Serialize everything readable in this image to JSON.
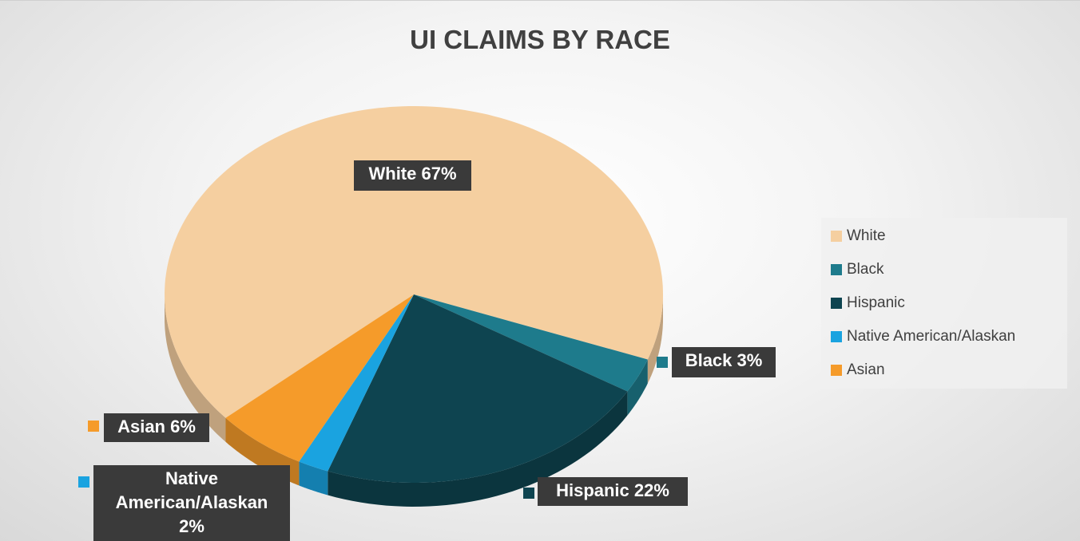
{
  "chart_data": {
    "type": "pie",
    "title": "UI CLAIMS BY RACE",
    "categories": [
      "White",
      "Black",
      "Hispanic",
      "Native American/Alaskan",
      "Asian"
    ],
    "values": [
      67,
      3,
      22,
      2,
      6
    ],
    "value_labels": [
      "White 67%",
      "Black 3%",
      "Hispanic 22%",
      "Native American/Alaskan 2%",
      "Asian 6%"
    ],
    "colors": [
      "#f5cfa0",
      "#1e7b8c",
      "#0e4450",
      "#1aa3e0",
      "#f59b2a"
    ],
    "legend": "right"
  }
}
